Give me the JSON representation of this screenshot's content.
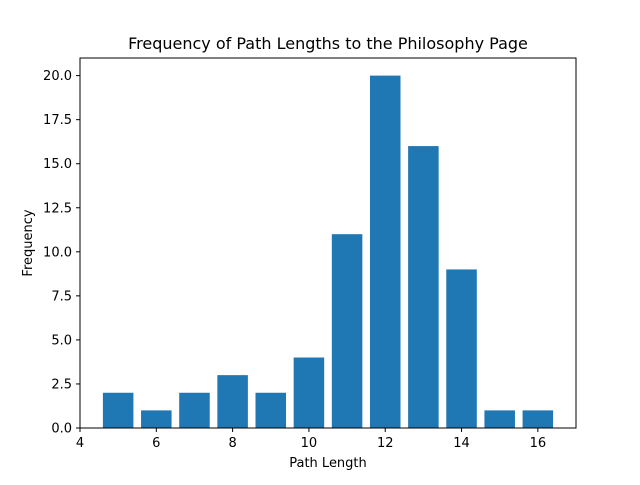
{
  "chart_data": {
    "type": "bar",
    "title": "Frequency of Path Lengths to the Philosophy Page",
    "xlabel": "Path Length",
    "ylabel": "Frequency",
    "x": [
      5,
      6,
      7,
      8,
      9,
      10,
      11,
      12,
      13,
      14,
      15,
      16
    ],
    "values": [
      2,
      1,
      2,
      3,
      2,
      4,
      11,
      20,
      16,
      9,
      1,
      1
    ],
    "bar_color": "#1f77b4",
    "xlim": [
      4,
      17
    ],
    "ylim": [
      0,
      21
    ],
    "xticks": [
      4,
      6,
      8,
      10,
      12,
      14,
      16
    ],
    "xtick_labels": [
      "4",
      "6",
      "8",
      "10",
      "12",
      "14",
      "16"
    ],
    "yticks": [
      0,
      2.5,
      5,
      7.5,
      10,
      12.5,
      15,
      17.5,
      20
    ],
    "ytick_labels": [
      "0.0",
      "2.5",
      "5.0",
      "7.5",
      "10.0",
      "12.5",
      "15.0",
      "17.5",
      "20.0"
    ],
    "grid": false,
    "legend": false
  }
}
